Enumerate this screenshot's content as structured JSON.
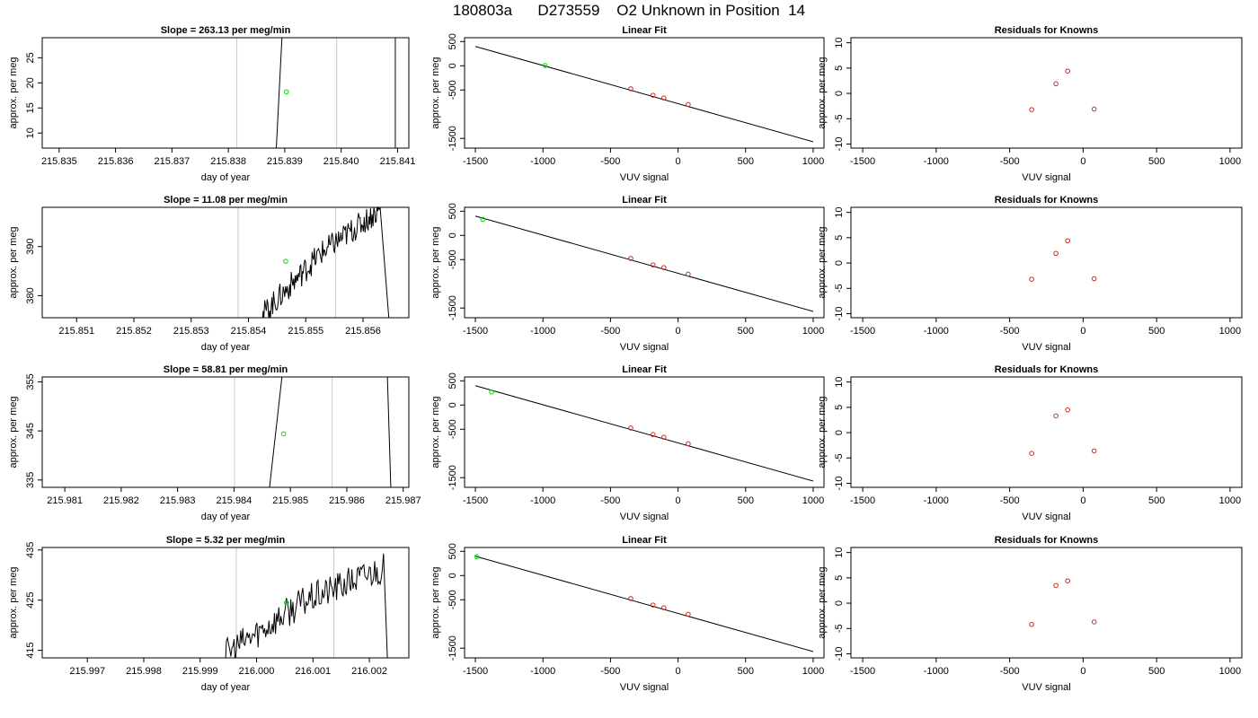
{
  "page": {
    "title": "180803a      D273559    O2 Unknown in Position  14"
  },
  "colors": {
    "trace": "#000000",
    "window": "#c8c8c8",
    "unknown": "#00e000",
    "known": "#c03030"
  },
  "chart_data": [
    {
      "type": "line",
      "row": 0,
      "col": 0,
      "title": "Slope =  263.13  per meg/min",
      "xlabel": "day of year",
      "ylabel": "approx. per meg",
      "xlim": [
        215.8347,
        215.8412
      ],
      "ylim": [
        7,
        29
      ],
      "xticks": [
        215.835,
        215.836,
        215.837,
        215.838,
        215.839,
        215.84,
        215.841
      ],
      "xtick_labels": [
        "215.835",
        "215.836",
        "215.837",
        "215.838",
        "215.839",
        "215.840",
        "215.841"
      ],
      "yticks": [
        10,
        15,
        20,
        25
      ],
      "ytick_labels": [
        "10",
        "15",
        "20",
        "25"
      ],
      "window_lines": [
        215.83815,
        215.83992
      ],
      "trace": [
        [
          215.83885,
          7
        ],
        [
          215.83895,
          29
        ]
      ],
      "trace2": [
        [
          215.84096,
          29
        ],
        [
          215.84096,
          7
        ]
      ],
      "unknown_point": [
        215.83903,
        18.2
      ]
    },
    {
      "type": "scatter",
      "row": 0,
      "col": 1,
      "title": "Linear Fit",
      "xlabel": "VUV signal",
      "ylabel": "approx. per meg",
      "xlim": [
        -1580,
        1080
      ],
      "ylim": [
        -1700,
        580
      ],
      "xticks": [
        -1500,
        -1000,
        -500,
        0,
        500,
        1000
      ],
      "xtick_labels": [
        "-1500",
        "-1000",
        "-500",
        "0",
        "500",
        "1000"
      ],
      "yticks": [
        500,
        0,
        -500,
        -1500
      ],
      "ytick_labels": [
        "500",
        "0",
        "-500",
        "-1500"
      ],
      "fit_line": [
        [
          -1500,
          400
        ],
        [
          1000,
          -1570
        ]
      ],
      "knowns": [
        [
          -350,
          -475
        ],
        [
          -185,
          -610
        ],
        [
          -105,
          -665
        ],
        [
          75,
          -800
        ]
      ],
      "unknown_point": [
        -985,
        5
      ]
    },
    {
      "type": "scatter",
      "row": 0,
      "col": 2,
      "title": "Residuals for Knowns",
      "xlabel": "VUV signal",
      "ylabel": "approx. per meg",
      "xlim": [
        -1580,
        1080
      ],
      "ylim": [
        -10.8,
        11
      ],
      "xticks": [
        -1500,
        -1000,
        -500,
        0,
        500,
        1000
      ],
      "xtick_labels": [
        "-1500",
        "-1000",
        "-500",
        "0",
        "500",
        "1000"
      ],
      "yticks": [
        -10,
        -5,
        0,
        5,
        10
      ],
      "ytick_labels": [
        "-10",
        "-5",
        "0",
        "5",
        "10"
      ],
      "points": [
        [
          -350,
          -3.2
        ],
        [
          -185,
          1.9
        ],
        [
          -105,
          4.4
        ],
        [
          75,
          -3.1
        ]
      ]
    },
    {
      "type": "line",
      "row": 1,
      "col": 0,
      "title": "Slope =  11.08  per meg/min",
      "xlabel": "day of year",
      "ylabel": "approx. per meg",
      "xlim": [
        215.8504,
        215.8568
      ],
      "ylim": [
        375.5,
        398
      ],
      "xticks": [
        215.851,
        215.852,
        215.853,
        215.854,
        215.855,
        215.856
      ],
      "xtick_labels": [
        "215.851",
        "215.852",
        "215.853",
        "215.854",
        "215.855",
        "215.856"
      ],
      "yticks": [
        380,
        390
      ],
      "ytick_labels": [
        "380",
        "390"
      ],
      "window_lines": [
        215.85382,
        215.85552
      ],
      "trace_start": 215.8542,
      "trace_end": 215.8563,
      "trace_rise": [
        375.5,
        388.5,
        397.5
      ],
      "trace_noise": 1.2,
      "trace_drop": [
        215.8563,
        215.85645
      ],
      "unknown_point": [
        215.85465,
        387
      ]
    },
    {
      "type": "scatter",
      "row": 1,
      "col": 1,
      "title": "Linear Fit",
      "xlabel": "VUV signal",
      "ylabel": "approx. per meg",
      "xlim": [
        -1580,
        1080
      ],
      "ylim": [
        -1700,
        580
      ],
      "xticks": [
        -1500,
        -1000,
        -500,
        0,
        500,
        1000
      ],
      "xtick_labels": [
        "-1500",
        "-1000",
        "-500",
        "0",
        "500",
        "1000"
      ],
      "yticks": [
        500,
        0,
        -500,
        -1500
      ],
      "ytick_labels": [
        "500",
        "0",
        "-500",
        "-1500"
      ],
      "fit_line": [
        [
          -1500,
          400
        ],
        [
          1000,
          -1570
        ]
      ],
      "knowns": [
        [
          -350,
          -475
        ],
        [
          -185,
          -610
        ],
        [
          -105,
          -665
        ],
        [
          75,
          -800
        ]
      ],
      "unknown_point": [
        -1445,
        330
      ]
    },
    {
      "type": "scatter",
      "row": 1,
      "col": 2,
      "title": "Residuals for Knowns",
      "xlabel": "VUV signal",
      "ylabel": "approx. per meg",
      "xlim": [
        -1580,
        1080
      ],
      "ylim": [
        -10.8,
        11
      ],
      "xticks": [
        -1500,
        -1000,
        -500,
        0,
        500,
        1000
      ],
      "xtick_labels": [
        "-1500",
        "-1000",
        "-500",
        "0",
        "500",
        "1000"
      ],
      "yticks": [
        -10,
        -5,
        0,
        5,
        10
      ],
      "ytick_labels": [
        "-10",
        "-5",
        "0",
        "5",
        "10"
      ],
      "points": [
        [
          -350,
          -3.2
        ],
        [
          -185,
          1.9
        ],
        [
          -105,
          4.4
        ],
        [
          75,
          -3.1
        ]
      ]
    },
    {
      "type": "line",
      "row": 2,
      "col": 0,
      "title": "Slope =  58.81  per meg/min",
      "xlabel": "day of year",
      "ylabel": "approx. per meg",
      "xlim": [
        215.9806,
        215.9871
      ],
      "ylim": [
        333.5,
        356
      ],
      "xticks": [
        215.981,
        215.982,
        215.983,
        215.984,
        215.985,
        215.986,
        215.987
      ],
      "xtick_labels": [
        "215.981",
        "215.982",
        "215.983",
        "215.984",
        "215.985",
        "215.986",
        "215.987"
      ],
      "yticks": [
        335,
        345,
        355
      ],
      "ytick_labels": [
        "335",
        "345",
        "355"
      ],
      "window_lines": [
        215.98401,
        215.98574
      ],
      "trace": [
        [
          215.98463,
          333.5
        ],
        [
          215.98485,
          356
        ]
      ],
      "trace2": [
        [
          215.98672,
          356
        ],
        [
          215.98678,
          333.5
        ]
      ],
      "unknown_point": [
        215.98488,
        344.4
      ]
    },
    {
      "type": "scatter",
      "row": 2,
      "col": 1,
      "title": "Linear Fit",
      "xlabel": "VUV signal",
      "ylabel": "approx. per meg",
      "xlim": [
        -1580,
        1080
      ],
      "ylim": [
        -1700,
        580
      ],
      "xticks": [
        -1500,
        -1000,
        -500,
        0,
        500,
        1000
      ],
      "xtick_labels": [
        "-1500",
        "-1000",
        "-500",
        "0",
        "500",
        "1000"
      ],
      "yticks": [
        500,
        0,
        -500,
        -1500
      ],
      "ytick_labels": [
        "500",
        "0",
        "-500",
        "-1500"
      ],
      "fit_line": [
        [
          -1500,
          400
        ],
        [
          1000,
          -1570
        ]
      ],
      "knowns": [
        [
          -350,
          -475
        ],
        [
          -185,
          -610
        ],
        [
          -105,
          -665
        ],
        [
          75,
          -800
        ]
      ],
      "unknown_point": [
        -1380,
        270
      ]
    },
    {
      "type": "scatter",
      "row": 2,
      "col": 2,
      "title": "Residuals for Knowns",
      "xlabel": "VUV signal",
      "ylabel": "approx. per meg",
      "xlim": [
        -1580,
        1080
      ],
      "ylim": [
        -10.8,
        11
      ],
      "xticks": [
        -1500,
        -1000,
        -500,
        0,
        500,
        1000
      ],
      "xtick_labels": [
        "-1500",
        "-1000",
        "-500",
        "0",
        "500",
        "1000"
      ],
      "yticks": [
        -10,
        -5,
        0,
        5,
        10
      ],
      "ytick_labels": [
        "-10",
        "-5",
        "0",
        "5",
        "10"
      ],
      "points": [
        [
          -350,
          -4.1
        ],
        [
          -185,
          3.3
        ],
        [
          -105,
          4.5
        ],
        [
          75,
          -3.6
        ]
      ]
    },
    {
      "type": "line",
      "row": 3,
      "col": 0,
      "title": "Slope =  5.32  per meg/min",
      "xlabel": "day of year",
      "ylabel": "approx. per meg",
      "xlim": [
        215.9962,
        216.0027
      ],
      "ylim": [
        413.5,
        435.5
      ],
      "xticks": [
        215.997,
        215.998,
        215.999,
        216.0,
        216.001,
        216.002
      ],
      "xtick_labels": [
        "215.997",
        "215.998",
        "215.999",
        "216.000",
        "216.001",
        "216.002"
      ],
      "yticks": [
        415,
        425,
        435
      ],
      "ytick_labels": [
        "415",
        "425",
        "435"
      ],
      "window_lines": [
        215.99964,
        216.00137
      ],
      "trace_start": 215.99935,
      "trace_end": 216.00225,
      "trace_rise": [
        413.5,
        424.5,
        431.5
      ],
      "trace_noise": 1.4,
      "trace_drop": [
        216.00225,
        216.00232
      ],
      "unknown_point": [
        216.00053,
        424.5
      ]
    },
    {
      "type": "scatter",
      "row": 3,
      "col": 1,
      "title": "Linear Fit",
      "xlabel": "VUV signal",
      "ylabel": "approx. per meg",
      "xlim": [
        -1580,
        1080
      ],
      "ylim": [
        -1700,
        580
      ],
      "xticks": [
        -1500,
        -1000,
        -500,
        0,
        500,
        1000
      ],
      "xtick_labels": [
        "-1500",
        "-1000",
        "-500",
        "0",
        "500",
        "1000"
      ],
      "yticks": [
        500,
        0,
        -500,
        -1500
      ],
      "ytick_labels": [
        "500",
        "0",
        "-500",
        "-1500"
      ],
      "fit_line": [
        [
          -1500,
          400
        ],
        [
          1000,
          -1570
        ]
      ],
      "knowns": [
        [
          -350,
          -475
        ],
        [
          -185,
          -610
        ],
        [
          -105,
          -665
        ],
        [
          75,
          -800
        ]
      ],
      "unknown_point": [
        -1490,
        390
      ]
    },
    {
      "type": "scatter",
      "row": 3,
      "col": 2,
      "title": "Residuals for Knowns",
      "xlabel": "VUV signal",
      "ylabel": "approx. per meg",
      "xlim": [
        -1580,
        1080
      ],
      "ylim": [
        -10.8,
        11
      ],
      "xticks": [
        -1500,
        -1000,
        -500,
        0,
        500,
        1000
      ],
      "xtick_labels": [
        "-1500",
        "-1000",
        "-500",
        "0",
        "500",
        "1000"
      ],
      "yticks": [
        -10,
        -5,
        0,
        5,
        10
      ],
      "ytick_labels": [
        "-10",
        "-5",
        "0",
        "5",
        "10"
      ],
      "points": [
        [
          -350,
          -4.2
        ],
        [
          -185,
          3.5
        ],
        [
          -105,
          4.4
        ],
        [
          75,
          -3.7
        ]
      ]
    }
  ]
}
